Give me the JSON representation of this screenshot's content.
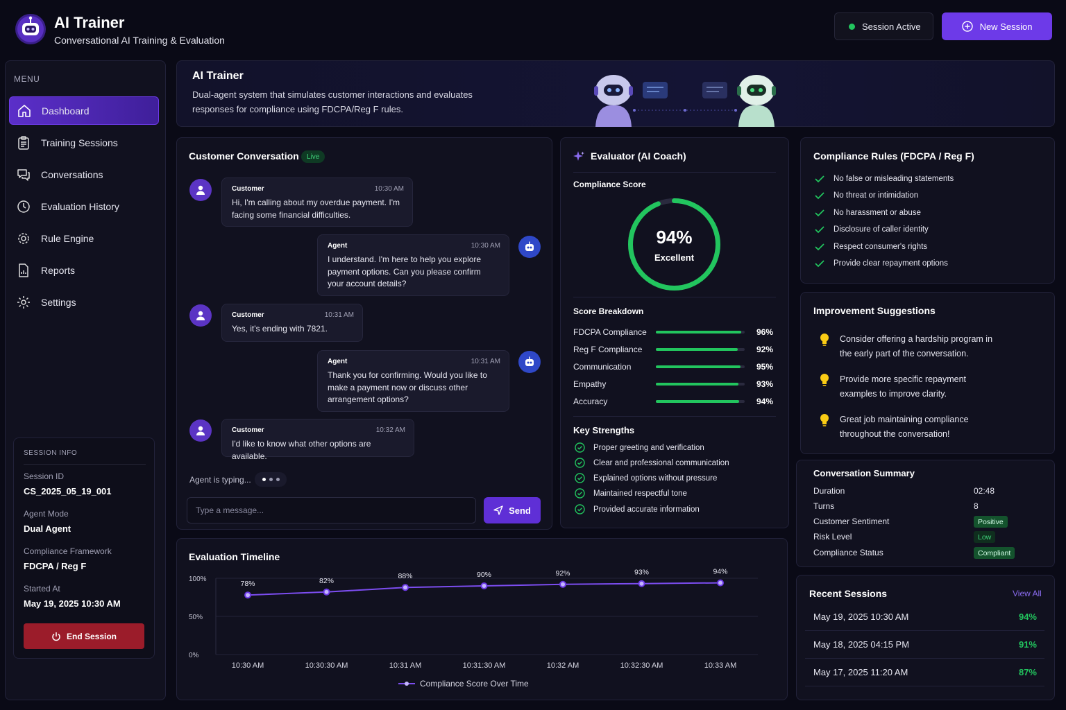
{
  "app": {
    "title": "AI Trainer",
    "subtitle": "Conversational AI Training & Evaluation"
  },
  "header": {
    "session_status": "Session Active",
    "new_session_label": "New Session"
  },
  "sidebar": {
    "menu_label": "MENU",
    "items": [
      {
        "label": "Dashboard",
        "icon": "home-icon",
        "active": true
      },
      {
        "label": "Training Sessions",
        "icon": "clipboard-list-icon"
      },
      {
        "label": "Conversations",
        "icon": "chat-bubbles-icon"
      },
      {
        "label": "Evaluation History",
        "icon": "history-icon"
      },
      {
        "label": "Rule Engine",
        "icon": "cog-network-icon"
      },
      {
        "label": "Reports",
        "icon": "report-icon"
      },
      {
        "label": "Settings",
        "icon": "gear-icon"
      }
    ],
    "session_info": {
      "title": "SESSION INFO",
      "session_id_label": "Session ID",
      "session_id": "CS_2025_05_19_001",
      "agent_mode_label": "Agent Mode",
      "agent_mode": "Dual Agent",
      "framework_label": "Compliance Framework",
      "framework": "FDCPA / Reg F",
      "started_label": "Started At",
      "started": "May 19, 2025 10:30 AM",
      "end_label": "End Session"
    }
  },
  "banner": {
    "title": "AI Trainer",
    "description": "Dual-agent system that simulates customer interactions and evaluates responses for compliance using FDCPA/Reg F rules."
  },
  "conversation": {
    "title": "Customer Conversation",
    "badge": "Live",
    "messages": [
      {
        "role": "Customer",
        "time": "10:30 AM",
        "text": "Hi, I'm calling about my overdue payment. I'm facing some financial difficulties."
      },
      {
        "role": "Agent",
        "time": "10:30 AM",
        "text": "I understand. I'm here to help you explore payment options. Can you please confirm your account details?"
      },
      {
        "role": "Customer",
        "time": "10:31 AM",
        "text": "Yes, it's ending with 7821."
      },
      {
        "role": "Agent",
        "time": "10:31 AM",
        "text": "Thank you for confirming. Would you like to make a payment now or discuss other arrangement options?"
      },
      {
        "role": "Customer",
        "time": "10:32 AM",
        "text": "I'd like to know what other options are available."
      }
    ],
    "typing": "Agent is typing...",
    "input_placeholder": "Type a message...",
    "input_value": "",
    "send_label": "Send"
  },
  "evaluator": {
    "title": "Evaluator (AI Coach)",
    "score_label": "Compliance Score",
    "score": "94%",
    "score_fraction": 0.94,
    "rating": "Excellent",
    "breakdown_title": "Score Breakdown",
    "breakdown": [
      {
        "label": "FDCPA Compliance",
        "pct": "96%",
        "value": 0.96
      },
      {
        "label": "Reg F Compliance",
        "pct": "92%",
        "value": 0.92
      },
      {
        "label": "Communication",
        "pct": "95%",
        "value": 0.95
      },
      {
        "label": "Empathy",
        "pct": "93%",
        "value": 0.93
      },
      {
        "label": "Accuracy",
        "pct": "94%",
        "value": 0.94
      }
    ],
    "strengths_title": "Key Strengths",
    "strengths": [
      "Proper greeting and verification",
      "Clear and professional communication",
      "Explained options without pressure",
      "Maintained respectful tone",
      "Provided accurate information"
    ]
  },
  "rules": {
    "title": "Compliance Rules (FDCPA / Reg F)",
    "items": [
      "No false or misleading statements",
      "No threat or intimidation",
      "No harassment or abuse",
      "Disclosure of caller identity",
      "Respect consumer's rights",
      "Provide clear repayment options"
    ]
  },
  "suggestions": {
    "title": "Improvement Suggestions",
    "items": [
      "Consider offering a hardship program in the early part of the conversation.",
      "Provide more specific repayment examples to improve clarity.",
      "Great job maintaining compliance throughout the conversation!"
    ]
  },
  "summary": {
    "title": "Conversation Summary",
    "duration_label": "Duration",
    "duration": "02:48",
    "turns_label": "Turns",
    "turns": "8",
    "sentiment_label": "Customer Sentiment",
    "sentiment": "Positive",
    "risk_label": "Risk Level",
    "risk": "Low",
    "status_label": "Compliance Status",
    "status": "Compliant"
  },
  "recent": {
    "title": "Recent Sessions",
    "view_all": "View All",
    "sessions": [
      {
        "date": "May 19, 2025 10:30 AM",
        "score": "94%"
      },
      {
        "date": "May 18, 2025 04:15 PM",
        "score": "91%"
      },
      {
        "date": "May 17, 2025 11:20 AM",
        "score": "87%"
      }
    ]
  },
  "timeline": {
    "title": "Evaluation Timeline"
  },
  "chart_data": {
    "type": "line",
    "title": "Evaluation Timeline",
    "x": [
      "10:30 AM",
      "10:30:30 AM",
      "10:31 AM",
      "10:31:30 AM",
      "10:32 AM",
      "10:32:30 AM",
      "10:33 AM"
    ],
    "series": [
      {
        "name": "Compliance Score Over Time",
        "values": [
          78,
          82,
          88,
          90,
          92,
          93,
          94
        ],
        "labels": [
          "78%",
          "82%",
          "88%",
          "90%",
          "92%",
          "93%",
          "94%"
        ]
      }
    ],
    "y_ticks": [
      "100%",
      "50%",
      "0%"
    ],
    "ylim": [
      0,
      100
    ],
    "grid": true,
    "legend": "bottom-center"
  },
  "colors": {
    "accent": "#6d3ae8",
    "success": "#22c55e",
    "danger": "#9b1c2a",
    "background": "#0a0a16"
  }
}
